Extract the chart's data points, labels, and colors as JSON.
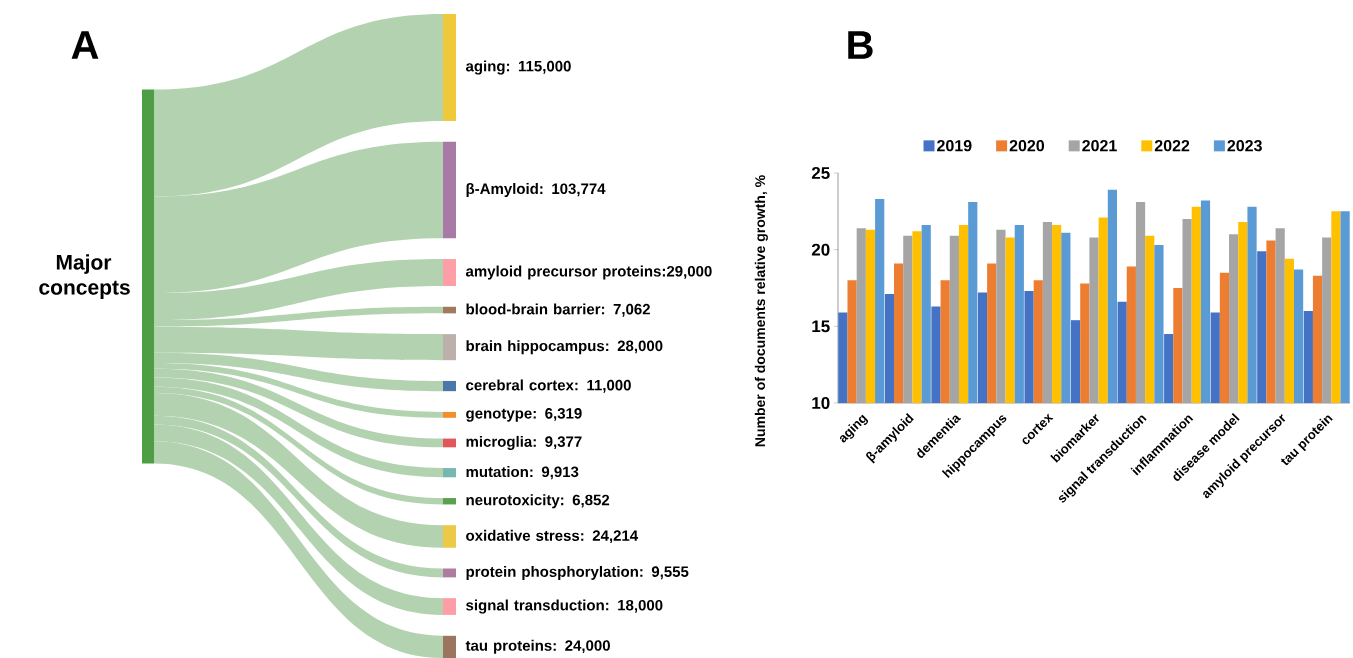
{
  "chart_data": [
    {
      "type": "other",
      "title": "A",
      "ylabel": "Major concepts",
      "color": "#b3d3b0",
      "categories": [
        "aging",
        "β-Amyloid",
        "amyloid precursor proteins",
        "blood-brain barrier",
        "brain hippocampus",
        "cerebral cortex",
        "genotype",
        "microglia",
        "mutation",
        "neurotoxicity",
        "oxidative stress",
        "protein phosphorylation",
        "signal transduction",
        "tau proteins"
      ],
      "value_labels": [
        ": 115,000",
        ": 103,774",
        ":29,000",
        ": 7,062",
        ": 28,000",
        ": 11,000",
        ": 6,319",
        ": 9,377",
        ": 9,913",
        ": 6,852",
        ": 24,214",
        ": 9,555",
        ": 18,000",
        ": 24,000"
      ],
      "values": [
        115000,
        103774,
        29000,
        7062,
        28000,
        11000,
        6319,
        9377,
        9913,
        6852,
        24214,
        9555,
        18000,
        24000
      ],
      "colors": [
        "#f0c93b",
        "#a87aa6",
        "#fe9ea7",
        "#a07a5f",
        "#bdb0ab",
        "#4a77a8",
        "#f28e2b",
        "#e15759",
        "#76b7b2",
        "#59a14f",
        "#edc948",
        "#b07aa1",
        "#ff9da7",
        "#9c755f"
      ]
    },
    {
      "type": "bar",
      "title": "B",
      "ylabel": "Number of documents relative growth, %",
      "categories": [
        "aging",
        "β-amyloid",
        "dementia",
        "hippocampus",
        "cortex",
        "biomarker",
        "signal transduction",
        "inflammation",
        "disease model",
        "amyloid precursor",
        "tau protein"
      ],
      "ylim": [
        10,
        25
      ],
      "yticks": [
        10,
        15,
        20,
        25
      ],
      "legend": "top",
      "series": [
        {
          "name": "2019",
          "color": "#4472c4",
          "values": [
            15.9,
            17.1,
            16.3,
            17.2,
            17.3,
            15.4,
            16.6,
            14.5,
            15.9,
            19.9,
            16.0
          ]
        },
        {
          "name": "2020",
          "color": "#ed7d31",
          "values": [
            18.0,
            19.1,
            18.0,
            19.1,
            18.0,
            17.8,
            18.9,
            17.5,
            18.5,
            20.6,
            18.3
          ]
        },
        {
          "name": "2021",
          "color": "#a5a5a5",
          "values": [
            21.4,
            20.9,
            20.9,
            21.3,
            21.8,
            20.8,
            23.1,
            22.0,
            21.0,
            21.4,
            20.8
          ]
        },
        {
          "name": "2022",
          "color": "#ffc000",
          "values": [
            21.3,
            21.2,
            21.6,
            20.8,
            21.6,
            22.1,
            20.9,
            22.8,
            21.8,
            19.4,
            22.5
          ]
        },
        {
          "name": "2023",
          "color": "#5b9bd5",
          "values": [
            23.3,
            21.6,
            23.1,
            21.6,
            21.1,
            23.9,
            20.3,
            23.2,
            22.8,
            18.7,
            22.5
          ]
        }
      ]
    }
  ]
}
